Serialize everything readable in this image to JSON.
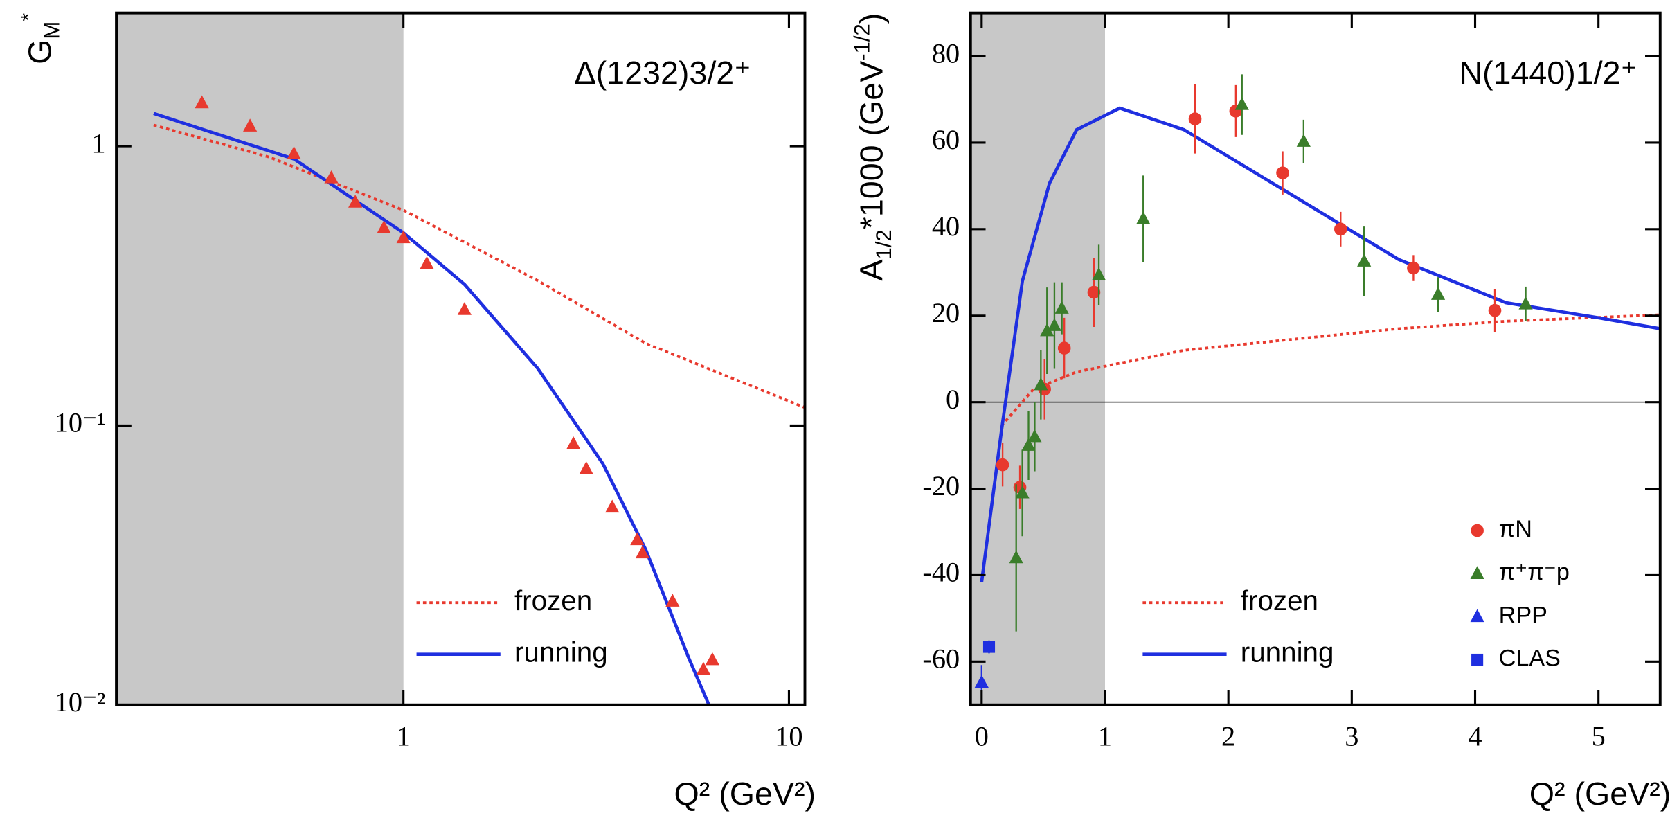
{
  "chart_data": [
    {
      "type": "scatter",
      "annotation": "Δ(1232)3/2⁺",
      "x_label": "Q² (GeV²)",
      "y_label": [
        "G",
        "M",
        "*"
      ],
      "xscale": "log",
      "yscale": "log",
      "xlim": [
        0.18,
        11
      ],
      "ylim": [
        0.01,
        3
      ],
      "xticks": [
        1,
        10
      ],
      "yticks": [
        {
          "value": 0.01,
          "label": "10⁻²"
        },
        {
          "value": 0.1,
          "label": "10⁻¹"
        },
        1
      ],
      "shade_until": 1,
      "shade_color": "#c8c8c8",
      "lines": [
        {
          "name": "frozen",
          "color": "#e8392e",
          "dash": true,
          "x": [
            0.225,
            0.448,
            1.0,
            2.23,
            4.25,
            11
          ],
          "values": [
            1.19,
            0.915,
            0.59,
            0.33,
            0.197,
            0.116
          ]
        },
        {
          "name": "running",
          "color": "#1f2fe0",
          "dash": false,
          "x": [
            0.225,
            0.52,
            0.75,
            1.0,
            1.44,
            2.23,
            3.29,
            4.25,
            5.5,
            6.2
          ],
          "values": [
            1.31,
            0.9,
            0.64,
            0.49,
            0.32,
            0.16,
            0.073,
            0.036,
            0.0147,
            0.01
          ]
        }
      ],
      "series": [
        {
          "color": "#e8392e",
          "marker": "triangle",
          "x": [
            0.3,
            0.4,
            0.52,
            0.65,
            0.75,
            0.89,
            1.0,
            1.15,
            1.44,
            2.76,
            2.98,
            3.48,
            4.04,
            4.17,
            4.99,
            6.0,
            6.33
          ],
          "values": [
            1.43,
            1.18,
            0.94,
            0.77,
            0.63,
            0.51,
            0.47,
            0.38,
            0.26,
            0.086,
            0.07,
            0.051,
            0.039,
            0.035,
            0.0235,
            0.0134,
            0.0145
          ]
        }
      ]
    },
    {
      "type": "scatter",
      "annotation": "N(1440)1/2⁺",
      "x_label": "Q² (GeV²)",
      "y_label": [
        "A",
        "1/2",
        "*1000 (GeV",
        "-1/2",
        ")"
      ],
      "xscale": "linear",
      "yscale": "linear",
      "xlim": [
        -0.09,
        5.5
      ],
      "ylim": [
        -70,
        90
      ],
      "xticks": [
        0,
        1,
        2,
        3,
        4,
        5
      ],
      "yticks": [
        -60,
        -40,
        -20,
        0,
        20,
        40,
        60,
        80
      ],
      "shade_until": 1,
      "shade_color": "#c8c8c8",
      "zero_line": true,
      "lines": [
        {
          "name": "frozen",
          "color": "#e8392e",
          "dash": true,
          "x": [
            0.16,
            0.42,
            0.77,
            1.64,
            2.51,
            3.38,
            4.25,
            5.5
          ],
          "values": [
            -5.5,
            3,
            7,
            12,
            14.5,
            17,
            18.7,
            20.2
          ]
        },
        {
          "name": "running",
          "color": "#1f2fe0",
          "dash": false,
          "x": [
            0.0,
            0.16,
            0.33,
            0.55,
            0.77,
            1.12,
            1.64,
            2.51,
            3.38,
            4.25,
            5.0,
            5.5
          ],
          "values": [
            -41.6,
            -6.7,
            28,
            50.6,
            63,
            68,
            63,
            48,
            33,
            23,
            19.5,
            17
          ]
        }
      ],
      "series": [
        {
          "name": "πN",
          "color": "#e8392e",
          "marker": "circle",
          "x": [
            0.31,
            0.17,
            0.51,
            0.67,
            0.91,
            1.73,
            2.06,
            2.44,
            2.91,
            3.5,
            4.16
          ],
          "values": [
            -19.7,
            -14.5,
            3,
            12.5,
            25.4,
            65.5,
            67.3,
            53,
            40,
            31,
            21.2
          ],
          "errors": [
            5,
            5,
            7,
            7,
            8,
            8,
            6,
            5,
            4,
            3,
            5
          ]
        },
        {
          "name": "π⁺π⁻p",
          "color": "#3a7d2a",
          "marker": "triangle",
          "x": [
            0.28,
            0.33,
            0.38,
            0.43,
            0.48,
            0.53,
            0.59,
            0.65,
            0.95,
            1.31,
            2.11,
            2.61,
            3.1,
            3.7,
            4.41
          ],
          "values": [
            -36,
            -21,
            -10,
            -8,
            4,
            16.5,
            17.7,
            21.7,
            29.4,
            42.4,
            68.8,
            60.3,
            32.6,
            24.9,
            22.7
          ],
          "errors": [
            17,
            10,
            8,
            8,
            8,
            10,
            10,
            6,
            7,
            10,
            7,
            5,
            8,
            4,
            4
          ]
        },
        {
          "name": "RPP",
          "color": "#1f2fe0",
          "marker": "triangle",
          "x": [
            0.0
          ],
          "values": [
            -64.8
          ],
          "errors": [
            4
          ]
        },
        {
          "name": "CLAS",
          "color": "#1f2fe0",
          "marker": "square",
          "x": [
            0.06
          ],
          "values": [
            -56.6
          ],
          "errors": [
            1.5
          ]
        }
      ]
    }
  ]
}
